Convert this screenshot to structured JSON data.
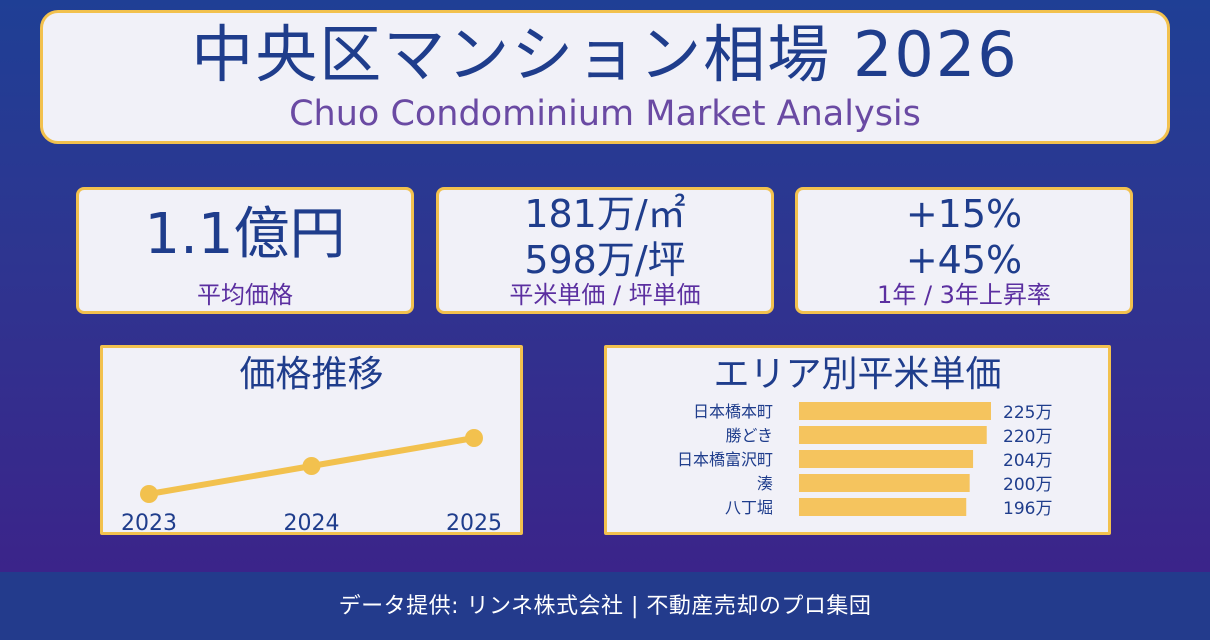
{
  "title": {
    "jp": "中央区マンション相場 2026",
    "en": "Chuo Condominium Market Analysis"
  },
  "stats": [
    {
      "lines": [
        "1.1億円"
      ],
      "label": "平均価格"
    },
    {
      "lines": [
        "181万/㎡",
        "598万/坪"
      ],
      "label": "平米単価 / 坪単価"
    },
    {
      "lines": [
        "+15%",
        "+45%"
      ],
      "label": "1年 / 3年上昇率"
    }
  ],
  "colors": {
    "accent": "#f2c14e",
    "navy": "#1f3d8c",
    "purple": "#5b2fa0",
    "card_bg": "#f1f1f8"
  },
  "chart_data": [
    {
      "type": "line",
      "title": "価格推移",
      "x": [
        "2023",
        "2024",
        "2025"
      ],
      "series": [
        {
          "values": [
            0.82,
            0.96,
            1.1
          ]
        }
      ],
      "ylim": [
        0.6,
        1.25
      ],
      "grid": false
    },
    {
      "type": "bar",
      "orientation": "horizontal",
      "title": "エリア別平米単価",
      "categories": [
        "日本橋本町",
        "勝どき",
        "日本橋富沢町",
        "湊",
        "八丁堀"
      ],
      "values": [
        225,
        220,
        204,
        200,
        196
      ],
      "value_labels": [
        "225万",
        "220万",
        "204万",
        "200万",
        "196万"
      ],
      "xlim": [
        0,
        225
      ],
      "grid": false
    }
  ],
  "footer": {
    "text": "データ提供: リンネ株式会社 | 不動産売却のプロ集団"
  }
}
